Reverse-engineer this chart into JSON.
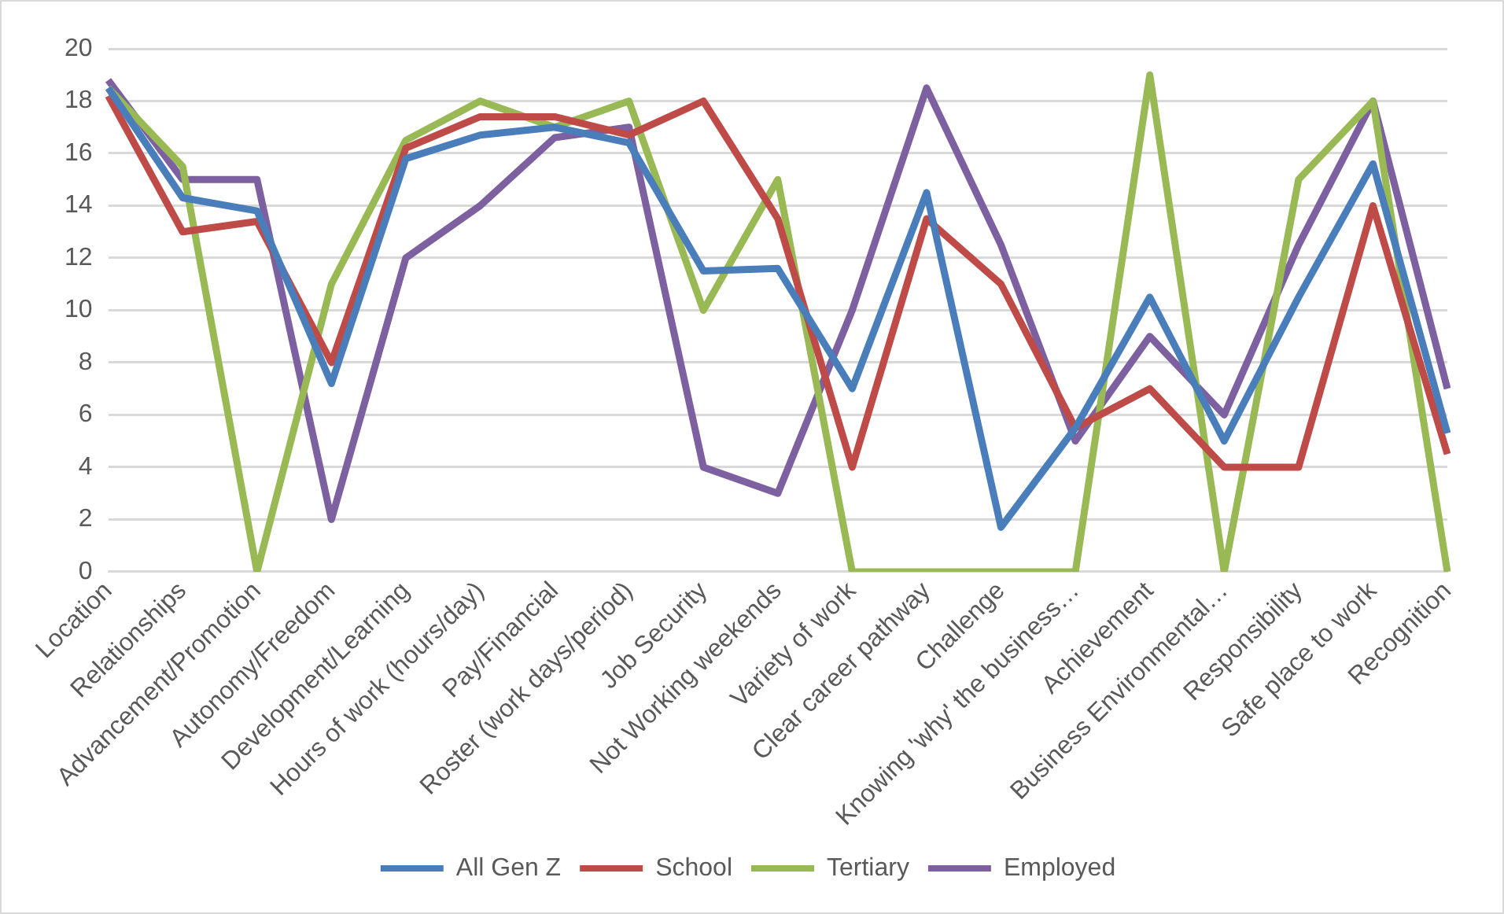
{
  "chart_data": {
    "type": "line",
    "categories": [
      "Location",
      "Relationships",
      "Advancement/Promotion",
      "Autonomy/Freedom",
      "Development/Learning",
      "Hours of work (hours/day)",
      "Pay/Financial",
      "Roster (work days/period)",
      "Job Security",
      "Not Working weekends",
      "Variety of work",
      "Clear career pathway",
      "Challenge",
      "Knowing 'why' the business…",
      "Achievement",
      "Business Environmental…",
      "Responsibility",
      "Safe place to work",
      "Recognition"
    ],
    "series": [
      {
        "name": "All Gen Z",
        "color": "#4a7ebb",
        "values": [
          18.5,
          14.3,
          13.8,
          7.2,
          15.8,
          16.7,
          17,
          16.4,
          11.5,
          11.6,
          7,
          14.5,
          1.7,
          5.5,
          10.5,
          5,
          10.5,
          15.6,
          5.3
        ]
      },
      {
        "name": "School",
        "color": "#be4b48",
        "values": [
          18.2,
          13,
          13.4,
          8,
          16.2,
          17.4,
          17.4,
          16.7,
          18,
          13.5,
          4,
          13.5,
          11,
          5.5,
          7,
          4,
          4,
          14,
          4.5
        ]
      },
      {
        "name": "Tertiary",
        "color": "#98b954",
        "values": [
          18.5,
          15.5,
          0,
          11,
          16.5,
          18,
          17,
          18,
          10,
          15,
          0,
          0,
          0,
          0,
          19,
          0,
          15,
          18,
          0
        ]
      },
      {
        "name": "Employed",
        "color": "#7d60a0",
        "values": [
          18.8,
          15,
          15,
          2,
          12,
          14,
          16.6,
          17,
          4,
          3,
          10,
          18.5,
          12.5,
          5,
          9,
          6,
          12.5,
          18,
          7
        ]
      }
    ],
    "ylim": [
      0,
      20
    ],
    "yticks": [
      0,
      2,
      4,
      6,
      8,
      10,
      12,
      14,
      16,
      18,
      20
    ],
    "grid": "y",
    "legend": "bottom",
    "marker": "none",
    "line_style": "solid"
  }
}
